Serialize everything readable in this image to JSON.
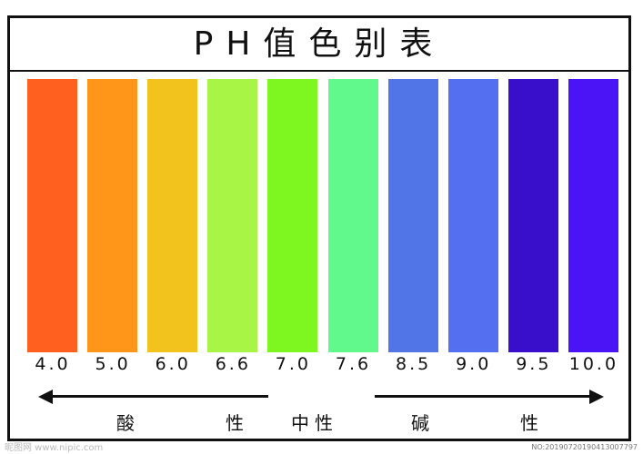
{
  "chart_data": {
    "type": "table",
    "title": "PH值色别表",
    "categories": [
      "4.0",
      "5.0",
      "6.0",
      "6.6",
      "7.0",
      "7.6",
      "8.5",
      "9.0",
      "9.5",
      "10.0"
    ],
    "colors": [
      "#FF5F1F",
      "#FF961A",
      "#F2C31C",
      "#A8F545",
      "#7EF61F",
      "#62F98C",
      "#5175E6",
      "#5470F0",
      "#3A0FCC",
      "#4A14F7"
    ],
    "zones": {
      "acid": "酸　　　性",
      "neutral": "中性",
      "base": "碱　　　性"
    }
  },
  "watermark": {
    "site": "昵图网 www.nipic.com",
    "id": "NO:20190720190413007797"
  }
}
